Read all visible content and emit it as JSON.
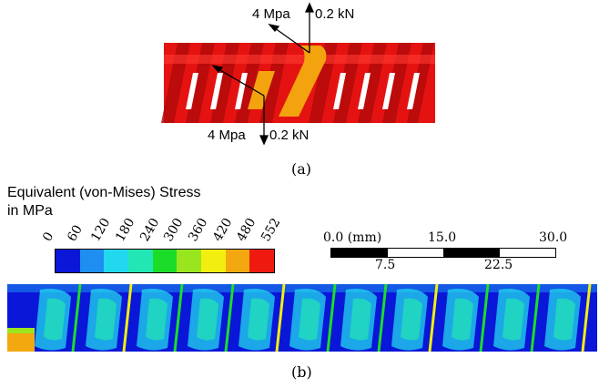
{
  "panel_a": {
    "caption": "(a)",
    "top_load": {
      "pressure": "4 Mpa",
      "force": "0.2 kN"
    },
    "bottom_load": {
      "pressure": "4 Mpa",
      "force": "0.2 kN"
    }
  },
  "panel_b": {
    "caption": "(b)",
    "legend_title_line1": "Equivalent (von-Mises) Stress",
    "legend_title_line2": "in MPa",
    "ticks": [
      "0",
      "60",
      "120",
      "180",
      "240",
      "300",
      "360",
      "420",
      "480",
      "552"
    ],
    "colors": [
      "#0a16d8",
      "#1e8ff0",
      "#22d8ee",
      "#22e6b4",
      "#1cdc2a",
      "#9ae61e",
      "#f2ee10",
      "#f2a80e",
      "#ee1a10"
    ],
    "scale_bar": {
      "top_labels": [
        "0.0 (mm)",
        "15.0",
        "30.0"
      ],
      "bottom_labels": [
        "7.5",
        "22.5"
      ]
    }
  }
}
